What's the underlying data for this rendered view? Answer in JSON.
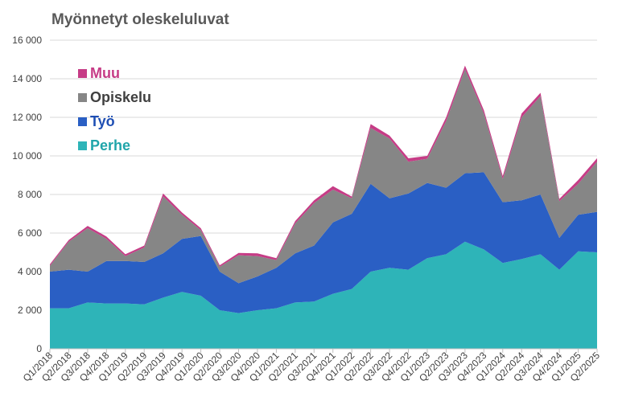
{
  "chart_data": {
    "type": "area",
    "stacked": true,
    "title": "Myönnetyt oleskeluluvat",
    "xlabel": "",
    "ylabel": "",
    "ylim": [
      0,
      16000
    ],
    "yticks": [
      0,
      2000,
      4000,
      6000,
      8000,
      10000,
      12000,
      14000,
      16000
    ],
    "ytick_labels": [
      "0",
      "2 000",
      "4 000",
      "6 000",
      "8 000",
      "10 000",
      "12 000",
      "14 000",
      "16 000"
    ],
    "grid": "horizontal",
    "legend_position": "top-left",
    "categories": [
      "Q1/2018",
      "Q2/2018",
      "Q3/2018",
      "Q4/2018",
      "Q1/2019",
      "Q2/2019",
      "Q3/2019",
      "Q4/2019",
      "Q1/2020",
      "Q2/2020",
      "Q3/2020",
      "Q4/2020",
      "Q1/2021",
      "Q2/2021",
      "Q3/2021",
      "Q4/2021",
      "Q1/2022",
      "Q2/2022",
      "Q3/2022",
      "Q4/2022",
      "Q1/2023",
      "Q2/2023",
      "Q3/2023",
      "Q4/2023",
      "Q1/2024",
      "Q2/2024",
      "Q3/2024",
      "Q4/2024",
      "Q1/2025",
      "Q2/2025"
    ],
    "x_tick_labels": [
      "Q1/2018",
      "Q2/2018",
      "Q3/2018",
      "Q4/2018",
      "Q1/2019",
      "Q2/2019",
      "Q3/2019",
      "Q4/2019",
      "Q1/2020",
      "Q2/2020",
      "Q3/2020",
      "Q4/2020",
      "Q1/2021",
      "Q2/2021",
      "Q3/2021",
      "Q4/2021",
      "Q1/2022",
      "Q2/2022",
      "Q3/2022",
      "Q4/2022",
      "Q1/2023",
      "Q2/2023",
      "Q3/2023",
      "Q4/2023",
      "Q1/2024",
      "Q2/2024",
      "Q3/2024",
      "Q4/2024",
      "Q1/2025",
      "Q2/2025"
    ],
    "series": [
      {
        "name": "Perhe",
        "color": "#2eb4b8",
        "values": [
          2100,
          2100,
          2400,
          2350,
          2350,
          2300,
          2650,
          2950,
          2750,
          2000,
          1850,
          2000,
          2100,
          2400,
          2450,
          2850,
          3100,
          4000,
          4200,
          4100,
          4700,
          4900,
          5550,
          5150,
          4450,
          4650,
          4900,
          4100,
          5050,
          5000
        ]
      },
      {
        "name": "Työ",
        "color": "#2a5fc4",
        "values": [
          1900,
          2000,
          1600,
          2200,
          2200,
          2200,
          2300,
          2750,
          3100,
          2000,
          1550,
          1750,
          2100,
          2550,
          2900,
          3700,
          3900,
          4550,
          3600,
          3950,
          3900,
          3450,
          3550,
          4000,
          3150,
          3050,
          3100,
          1650,
          1900,
          2100
        ]
      },
      {
        "name": "Opiskelu",
        "color": "#868686",
        "values": [
          300,
          1450,
          2250,
          1150,
          250,
          750,
          2950,
          1250,
          300,
          250,
          1450,
          1050,
          400,
          1550,
          2200,
          1700,
          800,
          2900,
          3100,
          1650,
          1250,
          3450,
          5400,
          3050,
          1200,
          4300,
          5100,
          1900,
          1600,
          2600
        ]
      },
      {
        "name": "Muu",
        "color": "#c63c86",
        "values": [
          80,
          90,
          120,
          120,
          100,
          100,
          150,
          120,
          100,
          80,
          120,
          150,
          100,
          120,
          150,
          180,
          90,
          200,
          150,
          180,
          150,
          200,
          180,
          170,
          160,
          200,
          170,
          120,
          200,
          180
        ]
      }
    ]
  }
}
